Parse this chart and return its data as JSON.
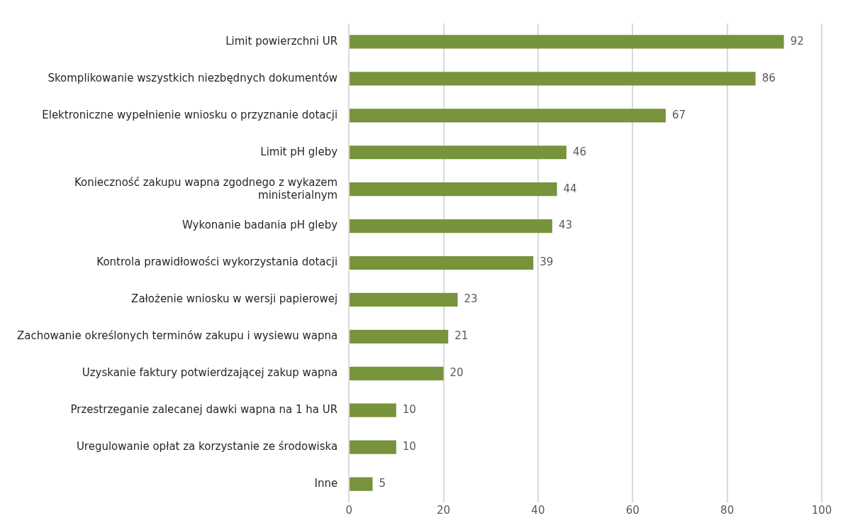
{
  "chart_data": {
    "type": "bar",
    "orientation": "horizontal",
    "categories": [
      "Limit powierzchni UR",
      "Skomplikowanie wszystkich niezbędnych dokumentów",
      "Elektroniczne wypełnienie wniosku o przyznanie dotacji",
      "Limit pH gleby",
      "Konieczność zakupu wapna zgodnego z wykazem ministerialnym",
      "Wykonanie badania pH gleby",
      "Kontrola prawidłowości wykorzystania dotacji",
      "Założenie wniosku w wersji papierowej",
      "Zachowanie określonych terminów zakupu i wysiewu wapna",
      "Uzyskanie faktury potwierdzającej zakup wapna",
      "Przestrzeganie zalecanej dawki wapna na 1 ha UR",
      "Uregulowanie opłat za korzystanie ze środowiska",
      "Inne"
    ],
    "values": [
      92,
      86,
      67,
      46,
      44,
      43,
      39,
      23,
      21,
      20,
      10,
      10,
      5
    ],
    "color": "#77933c",
    "xlim": [
      0,
      100
    ],
    "xticks": [
      0,
      20,
      40,
      60,
      80,
      100
    ],
    "grid": "x",
    "data_labels": true
  }
}
